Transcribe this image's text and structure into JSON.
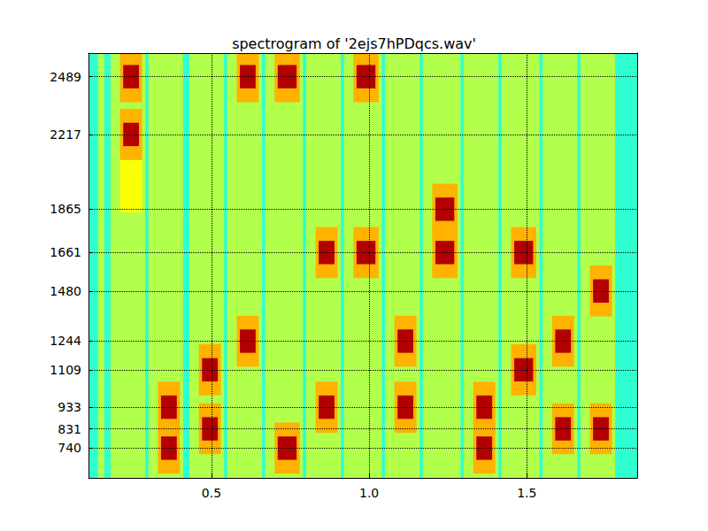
{
  "chart_data": {
    "type": "heatmap",
    "title": "spectrogram of '2ejs7hPDqcs.wav'",
    "xlim": [
      0.11,
      1.85
    ],
    "ylim": [
      600,
      2600
    ],
    "xticks": [
      0.5,
      {
        "value": 1,
        "label": "1.0"
      },
      1.5
    ],
    "yticks": [
      740,
      831,
      933,
      1109,
      1244,
      1480,
      1661,
      1865,
      2217,
      2489
    ],
    "grid": true,
    "zlim": [
      0,
      100
    ],
    "background_level": 42,
    "cells": [
      [
        0.14,
        0.16,
        600,
        2600,
        55
      ],
      [
        0.18,
        0.29,
        600,
        2600,
        55
      ],
      [
        0.21,
        0.28,
        1850,
        2150,
        62
      ],
      [
        0.21,
        0.28,
        2369,
        2609,
        70
      ],
      [
        0.21,
        0.28,
        2097,
        2337,
        70
      ],
      [
        0.22,
        0.27,
        2434,
        2544,
        95
      ],
      [
        0.22,
        0.27,
        2162,
        2272,
        95
      ],
      [
        0.3,
        0.41,
        600,
        2600,
        55
      ],
      [
        0.33,
        0.4,
        813,
        1053,
        70
      ],
      [
        0.33,
        0.4,
        620,
        860,
        70
      ],
      [
        0.34,
        0.39,
        878,
        988,
        95
      ],
      [
        0.34,
        0.39,
        685,
        795,
        95
      ],
      [
        0.43,
        0.54,
        600,
        2600,
        55
      ],
      [
        0.46,
        0.53,
        989,
        1229,
        70
      ],
      [
        0.46,
        0.53,
        711,
        951,
        70
      ],
      [
        0.47,
        0.52,
        1054,
        1164,
        95
      ],
      [
        0.47,
        0.52,
        776,
        886,
        95
      ],
      [
        0.55,
        0.66,
        600,
        2600,
        55
      ],
      [
        0.58,
        0.65,
        2369,
        2609,
        70
      ],
      [
        0.58,
        0.65,
        1124,
        1364,
        70
      ],
      [
        0.59,
        0.64,
        2434,
        2544,
        95
      ],
      [
        0.59,
        0.64,
        1189,
        1299,
        95
      ],
      [
        0.67,
        0.79,
        600,
        2600,
        55
      ],
      [
        0.7,
        0.78,
        2369,
        2609,
        70
      ],
      [
        0.7,
        0.78,
        620,
        860,
        70
      ],
      [
        0.71,
        0.77,
        2434,
        2544,
        95
      ],
      [
        0.71,
        0.77,
        685,
        795,
        95
      ],
      [
        0.8,
        0.91,
        600,
        2600,
        55
      ],
      [
        0.83,
        0.9,
        1541,
        1781,
        70
      ],
      [
        0.83,
        0.9,
        813,
        1053,
        70
      ],
      [
        0.84,
        0.89,
        1606,
        1716,
        95
      ],
      [
        0.84,
        0.89,
        878,
        988,
        95
      ],
      [
        0.92,
        1.04,
        600,
        2600,
        55
      ],
      [
        0.95,
        1.03,
        2369,
        2609,
        70
      ],
      [
        0.95,
        1.03,
        1541,
        1781,
        70
      ],
      [
        0.96,
        1.02,
        2434,
        2544,
        95
      ],
      [
        0.96,
        1.02,
        1606,
        1716,
        95
      ],
      [
        1.05,
        1.16,
        600,
        2600,
        55
      ],
      [
        1.08,
        1.15,
        1124,
        1364,
        70
      ],
      [
        1.08,
        1.15,
        813,
        1053,
        70
      ],
      [
        1.09,
        1.14,
        1189,
        1299,
        95
      ],
      [
        1.09,
        1.14,
        878,
        988,
        95
      ],
      [
        1.17,
        1.29,
        600,
        2600,
        55
      ],
      [
        1.2,
        1.28,
        1745,
        1985,
        70
      ],
      [
        1.2,
        1.28,
        1541,
        1781,
        70
      ],
      [
        1.21,
        1.27,
        1810,
        1920,
        95
      ],
      [
        1.21,
        1.27,
        1606,
        1716,
        95
      ],
      [
        1.3,
        1.41,
        600,
        2600,
        55
      ],
      [
        1.33,
        1.4,
        813,
        1053,
        70
      ],
      [
        1.33,
        1.4,
        620,
        860,
        70
      ],
      [
        1.34,
        1.39,
        878,
        988,
        95
      ],
      [
        1.34,
        1.39,
        685,
        795,
        95
      ],
      [
        1.42,
        1.54,
        600,
        2600,
        55
      ],
      [
        1.45,
        1.53,
        1541,
        1781,
        70
      ],
      [
        1.45,
        1.53,
        989,
        1229,
        70
      ],
      [
        1.46,
        1.52,
        1606,
        1716,
        95
      ],
      [
        1.46,
        1.52,
        1054,
        1164,
        95
      ],
      [
        1.55,
        1.66,
        600,
        2600,
        55
      ],
      [
        1.58,
        1.65,
        1124,
        1364,
        70
      ],
      [
        1.58,
        1.65,
        711,
        951,
        70
      ],
      [
        1.59,
        1.64,
        1189,
        1299,
        95
      ],
      [
        1.59,
        1.64,
        776,
        886,
        95
      ],
      [
        1.67,
        1.78,
        600,
        2600,
        55
      ],
      [
        1.7,
        1.77,
        1360,
        1600,
        70
      ],
      [
        1.7,
        1.77,
        711,
        951,
        70
      ],
      [
        1.71,
        1.76,
        1425,
        1535,
        95
      ],
      [
        1.71,
        1.76,
        776,
        886,
        95
      ]
    ]
  }
}
